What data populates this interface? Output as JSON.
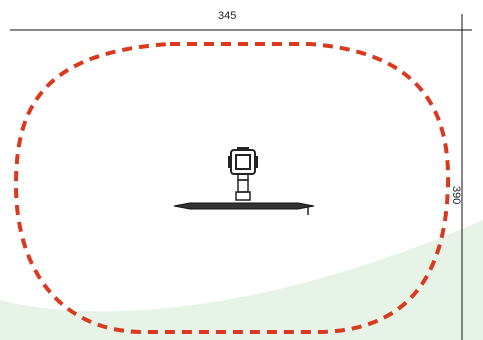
{
  "dimensions": {
    "width_label": "345",
    "height_label": "390"
  },
  "colors": {
    "clearance_outline": "#d93a1f",
    "ground_wave": "#e6f3e6",
    "dimension_line": "#111111",
    "equipment": "#222222"
  }
}
